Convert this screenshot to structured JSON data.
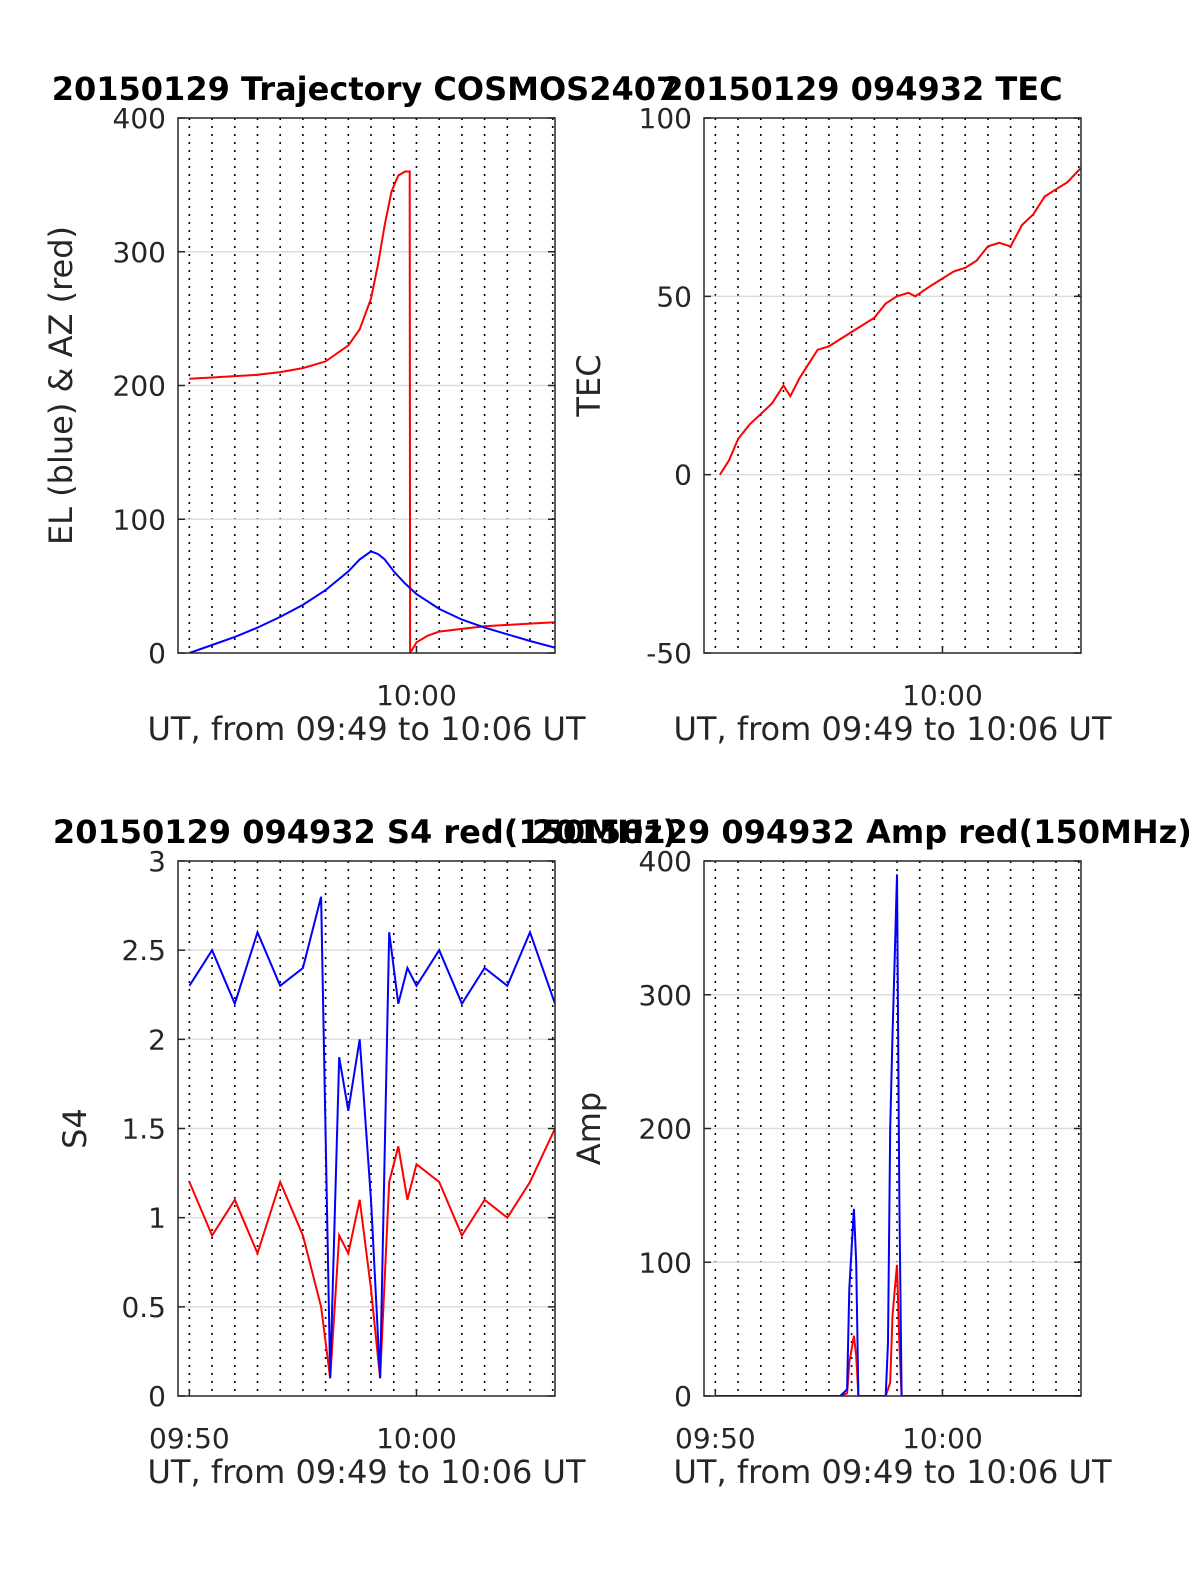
{
  "chart_data": [
    {
      "type": "line",
      "title": "20150129 Trajectory COSMOS2407",
      "xlabel": "UT, from 09:49 to 10:06 UT",
      "ylabel": "EL (blue) & AZ (red)",
      "xlim_min": [
        589.5,
        606.1
      ],
      "ylim": [
        0,
        400
      ],
      "yticks": [
        0,
        100,
        200,
        300,
        400
      ],
      "ytick_labels": [
        "0",
        "100",
        "200",
        "300",
        "400"
      ],
      "xticks_min": [
        600
      ],
      "xtick_labels": [
        "10:00"
      ],
      "grid": "y-solid, x-dotted minor",
      "series": [
        {
          "color": "#ff0000",
          "x_min": [
            590,
            591,
            592,
            593,
            594,
            595,
            596,
            597,
            597.5,
            598,
            598.3,
            598.6,
            598.9,
            599.2,
            599.5,
            599.7,
            599.72,
            600,
            600.5,
            601,
            602,
            603,
            604,
            605,
            606.1
          ],
          "values": [
            205,
            206,
            207,
            208,
            210,
            213,
            218,
            230,
            242,
            265,
            290,
            320,
            345,
            357,
            360,
            360,
            0,
            8,
            13,
            16,
            18,
            20,
            21,
            22,
            23
          ]
        },
        {
          "color": "#0000ff",
          "x_min": [
            590,
            591,
            592,
            593,
            594,
            595,
            596,
            597,
            597.5,
            598,
            598.3,
            598.6,
            599,
            599.5,
            600,
            601,
            602,
            603,
            604,
            605,
            606.1
          ],
          "values": [
            0,
            6,
            12,
            19,
            27,
            36,
            47,
            61,
            70,
            76,
            74,
            70,
            61,
            52,
            44,
            33,
            25,
            19,
            14,
            9,
            4
          ]
        }
      ]
    },
    {
      "type": "line",
      "title": "20150129 094932 TEC",
      "xlabel": "UT, from 09:49 to 10:06 UT",
      "ylabel": "TEC",
      "xlim_min": [
        589.5,
        606.1
      ],
      "ylim": [
        -50,
        100
      ],
      "yticks": [
        -50,
        0,
        50,
        100
      ],
      "ytick_labels": [
        "-50",
        "0",
        "50",
        "100"
      ],
      "xticks_min": [
        600
      ],
      "xtick_labels": [
        "10:00"
      ],
      "grid": "y-solid, x-dotted minor",
      "series": [
        {
          "color": "#ff0000",
          "x_min": [
            590.2,
            590.6,
            591,
            591.5,
            592,
            592.5,
            593,
            593.3,
            593.7,
            594,
            594.5,
            595,
            595.5,
            596,
            596.5,
            597,
            597.5,
            598,
            598.5,
            598.8,
            599.5,
            600,
            600.5,
            601,
            601.5,
            602,
            602.5,
            603,
            603.5,
            604,
            604.5,
            605,
            605.5,
            606.1
          ],
          "values": [
            0,
            4,
            10,
            14,
            17,
            20,
            25,
            22,
            27,
            30,
            35,
            36,
            38,
            40,
            42,
            44,
            48,
            50,
            51,
            50,
            53,
            55,
            57,
            58,
            60,
            64,
            65,
            64,
            70,
            73,
            78,
            80,
            82,
            86
          ]
        }
      ]
    },
    {
      "type": "line",
      "title": "20150129 094932 S4 red(150MHz)",
      "xlabel": "UT, from 09:49 to 10:06 UT",
      "ylabel": "S4",
      "xlim_min": [
        589.5,
        606.1
      ],
      "ylim": [
        0,
        3
      ],
      "yticks": [
        0,
        0.5,
        1,
        1.5,
        2,
        2.5,
        3
      ],
      "ytick_labels": [
        "0",
        "0.5",
        "1",
        "1.5",
        "2",
        "2.5",
        "3"
      ],
      "xticks_min": [
        590,
        600
      ],
      "xtick_labels": [
        "09:50",
        "10:00"
      ],
      "grid": "y-solid, x-dotted minor",
      "series": [
        {
          "color": "#ff0000",
          "x_min": [
            590,
            591,
            592,
            593,
            594,
            595,
            595.8,
            596.2,
            596.6,
            597,
            597.5,
            598,
            598.4,
            598.8,
            599.2,
            599.6,
            600,
            601,
            602,
            603,
            604,
            605,
            606.1
          ],
          "values": [
            1.2,
            0.9,
            1.1,
            0.8,
            1.2,
            0.9,
            0.5,
            0.1,
            0.9,
            0.8,
            1.1,
            0.6,
            0.1,
            1.2,
            1.4,
            1.1,
            1.3,
            1.2,
            0.9,
            1.1,
            1.0,
            1.2,
            1.5
          ]
        },
        {
          "color": "#0000ff",
          "x_min": [
            590,
            591,
            592,
            593,
            594,
            595,
            595.8,
            596.2,
            596.6,
            597,
            597.5,
            598,
            598.4,
            598.8,
            599.2,
            599.6,
            600,
            601,
            602,
            603,
            604,
            605,
            606.1
          ],
          "values": [
            2.3,
            2.5,
            2.2,
            2.6,
            2.3,
            2.4,
            2.8,
            0.1,
            1.9,
            1.6,
            2.0,
            1.1,
            0.1,
            2.6,
            2.2,
            2.4,
            2.3,
            2.5,
            2.2,
            2.4,
            2.3,
            2.6,
            2.2
          ]
        }
      ]
    },
    {
      "type": "line",
      "title": "20150129 094932 Amp red(150MHz)",
      "xlabel": "UT, from 09:49 to 10:06 UT",
      "ylabel": "Amp",
      "xlim_min": [
        589.5,
        606.1
      ],
      "ylim": [
        0,
        400
      ],
      "yticks": [
        0,
        100,
        200,
        300,
        400
      ],
      "ytick_labels": [
        "0",
        "100",
        "200",
        "300",
        "400"
      ],
      "xticks_min": [
        590,
        600
      ],
      "xtick_labels": [
        "09:50",
        "10:00"
      ],
      "grid": "y-solid, x-dotted minor",
      "series": [
        {
          "color": "#ff0000",
          "x_min": [
            590,
            595.5,
            595.8,
            595.9,
            596.0,
            596.1,
            596.2,
            596.3,
            597.5,
            597.7,
            597.8,
            597.9,
            598.0,
            598.1,
            598.2,
            606.1
          ],
          "values": [
            0,
            0,
            2,
            25,
            35,
            45,
            30,
            0,
            0,
            10,
            60,
            80,
            98,
            40,
            0,
            0
          ]
        },
        {
          "color": "#0000ff",
          "x_min": [
            590,
            595.5,
            595.8,
            595.9,
            596.0,
            596.1,
            596.2,
            596.3,
            597.5,
            597.6,
            597.7,
            597.8,
            597.9,
            598.0,
            598.1,
            598.2,
            606.1
          ],
          "values": [
            0,
            0,
            5,
            80,
            110,
            140,
            100,
            0,
            0,
            40,
            200,
            270,
            330,
            390,
            150,
            0,
            0
          ]
        }
      ]
    }
  ]
}
